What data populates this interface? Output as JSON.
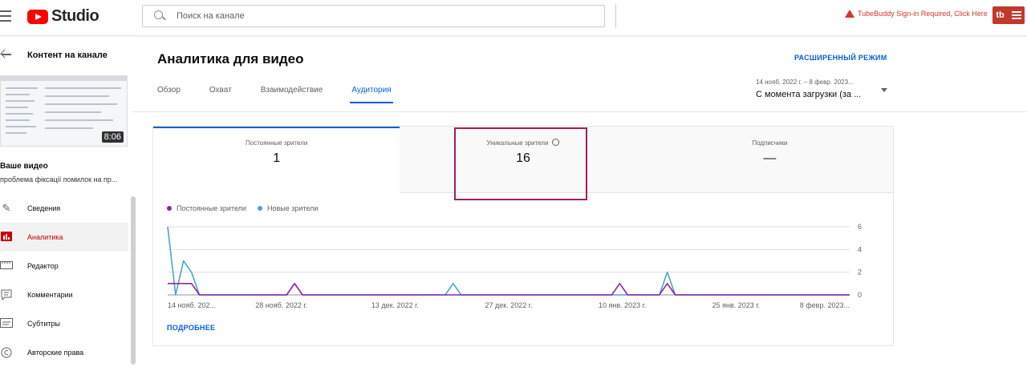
{
  "header": {
    "logo_text": "Studio",
    "search_placeholder": "Поиск на канале",
    "tubebuddy_warning": "TubeBuddy Sign-in Required, Click Here",
    "tubebuddy_logo": "tb"
  },
  "sidebar": {
    "content_title": "Контент на канале",
    "thumb_duration": "8:06",
    "your_video": "Ваше видео",
    "video_name": "проблема фіксації помилок на пр...",
    "items": [
      {
        "label": "Сведения",
        "icon": "pencil-icon"
      },
      {
        "label": "Аналитика",
        "icon": "analytics-icon",
        "active": true
      },
      {
        "label": "Редактор",
        "icon": "editor-icon"
      },
      {
        "label": "Комментарии",
        "icon": "comments-icon"
      },
      {
        "label": "Субтитры",
        "icon": "subtitles-icon"
      },
      {
        "label": "Авторские права",
        "icon": "copyright-icon"
      }
    ]
  },
  "main": {
    "title": "Аналитика для видео",
    "advanced_mode": "РАСШИРЕННЫЙ РЕЖИМ",
    "tabs": [
      {
        "label": "Обзор"
      },
      {
        "label": "Охват"
      },
      {
        "label": "Взаимодействие"
      },
      {
        "label": "Аудитория",
        "active": true
      }
    ],
    "date_range": "14 нояб. 2022 г. – 8 февр. 2023...",
    "date_label": "С момента загрузки (за ...",
    "metrics": [
      {
        "label": "Постоянные зрители",
        "value": "1",
        "selected": true
      },
      {
        "label": "Уникальные зрители",
        "value": "16",
        "highlighted": true
      },
      {
        "label": "Подписчики",
        "value": "—"
      }
    ],
    "more_link": "ПОДРОБНЕЕ"
  },
  "chart_data": {
    "type": "line",
    "series": [
      {
        "name": "Постоянные зрители",
        "color": "#8e24aa",
        "points": [
          [
            0,
            1
          ],
          [
            1,
            1
          ],
          [
            2,
            1
          ],
          [
            3,
            1
          ],
          [
            4,
            0
          ],
          [
            15,
            0
          ],
          [
            16,
            1
          ],
          [
            17,
            0
          ],
          [
            56,
            0
          ],
          [
            57,
            1
          ],
          [
            58,
            0
          ],
          [
            62,
            0
          ],
          [
            63,
            1
          ],
          [
            64,
            0
          ],
          [
            86,
            0
          ]
        ]
      },
      {
        "name": "Новые зрители",
        "color": "#4aa5c9",
        "points": [
          [
            0,
            6
          ],
          [
            1,
            0
          ],
          [
            2,
            3
          ],
          [
            3,
            2
          ],
          [
            4,
            0
          ],
          [
            15,
            0
          ],
          [
            16,
            1
          ],
          [
            17,
            0
          ],
          [
            35,
            0
          ],
          [
            36,
            1
          ],
          [
            37,
            0
          ],
          [
            62,
            0
          ],
          [
            63,
            2
          ],
          [
            64,
            0
          ],
          [
            86,
            0
          ]
        ]
      }
    ],
    "x_tick_labels": [
      "14 нояб. 202...",
      "28 нояб. 2022 г.",
      "13 дек. 2022 г.",
      "27 дек. 2022 г.",
      "10 янв. 2023 г.",
      "25 янв. 2023 г.",
      "8 февр. 2023..."
    ],
    "y_ticks": [
      0,
      2,
      4,
      6
    ],
    "ylim": [
      0,
      6
    ],
    "xlim": [
      0,
      86
    ],
    "grid": true,
    "legend": "top-left"
  }
}
